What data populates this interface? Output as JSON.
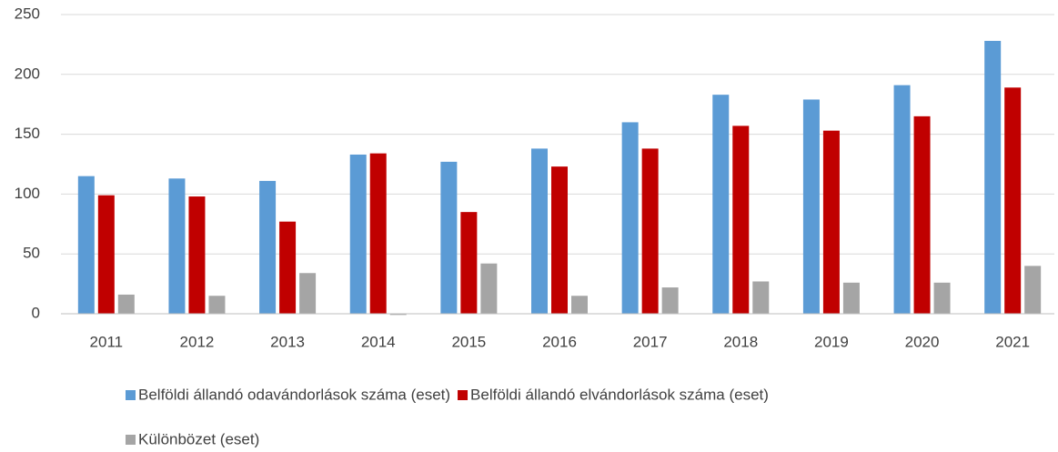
{
  "chart_data": {
    "type": "bar",
    "categories": [
      "2011",
      "2012",
      "2013",
      "2014",
      "2015",
      "2016",
      "2017",
      "2018",
      "2019",
      "2020",
      "2021"
    ],
    "series": [
      {
        "name": "Belföldi állandó odavándorlások száma (eset)",
        "color": "#5b9bd5",
        "values": [
          115,
          113,
          111,
          133,
          127,
          138,
          160,
          183,
          179,
          191,
          228
        ]
      },
      {
        "name": "Belföldi állandó elvándorlások száma (eset)",
        "color": "#c00000",
        "values": [
          99,
          98,
          77,
          134,
          85,
          123,
          138,
          157,
          153,
          165,
          189
        ]
      },
      {
        "name": "Különbözet (eset)",
        "color": "#a5a5a5",
        "values": [
          16,
          15,
          34,
          -1,
          42,
          15,
          22,
          27,
          26,
          26,
          40
        ]
      }
    ],
    "ylim": [
      0,
      250
    ],
    "yticks": [
      0,
      50,
      100,
      150,
      200,
      250
    ],
    "grid": true,
    "legend": "bottom"
  }
}
